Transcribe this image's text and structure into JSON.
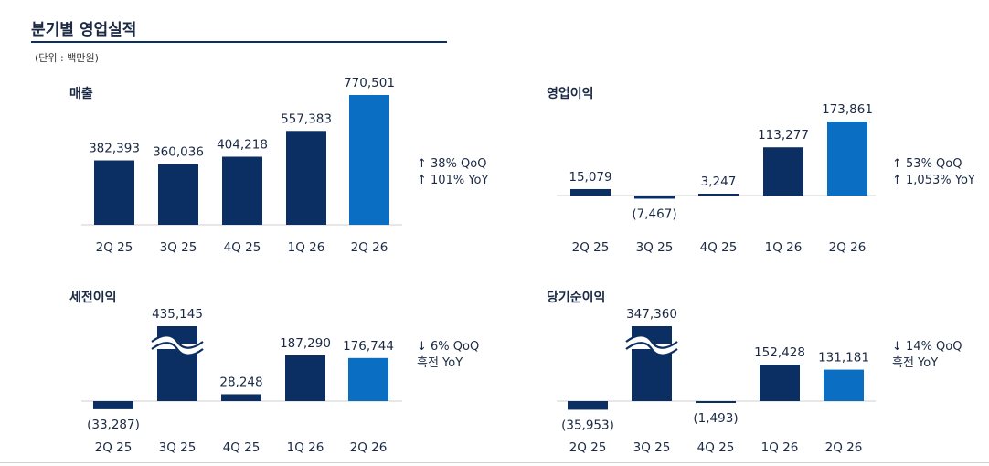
{
  "page": {
    "title": "분기별 영업실적",
    "unit_note": "(단위 : 백만원)"
  },
  "colors": {
    "dark_bar": "#0c2f63",
    "highlight_bar": "#0a6fc2",
    "baseline": "#cfcfcf",
    "text": "#1b2a44"
  },
  "chart_data": [
    {
      "type": "bar",
      "title": "매출",
      "categories": [
        "2Q 25",
        "3Q 25",
        "4Q 25",
        "1Q 26",
        "2Q 26"
      ],
      "values": [
        382393,
        360036,
        404218,
        557383,
        770501
      ],
      "value_labels": [
        "382,393",
        "360,036",
        "404,218",
        "557,383",
        "770,501"
      ],
      "highlight_index": 4,
      "break_index": null,
      "changes": [
        "↑ 38% QoQ",
        "↑ 101% YoY"
      ]
    },
    {
      "type": "bar",
      "title": "영업이익",
      "categories": [
        "2Q 25",
        "3Q 25",
        "4Q 25",
        "1Q 26",
        "2Q 26"
      ],
      "values": [
        15079,
        -7467,
        3247,
        113277,
        173861
      ],
      "value_labels": [
        "15,079",
        "(7,467)",
        "3,247",
        "113,277",
        "173,861"
      ],
      "highlight_index": 4,
      "break_index": null,
      "changes": [
        "↑ 53% QoQ",
        "↑ 1,053% YoY"
      ]
    },
    {
      "type": "bar",
      "title": "세전이익",
      "categories": [
        "2Q 25",
        "3Q 25",
        "4Q 25",
        "1Q 26",
        "2Q 26"
      ],
      "values": [
        -33287,
        435145,
        28248,
        187290,
        176744
      ],
      "value_labels": [
        "(33,287)",
        "435,145",
        "28,248",
        "187,290",
        "176,744"
      ],
      "highlight_index": 4,
      "break_index": 1,
      "changes": [
        "↓ 6% QoQ",
        "흑전 YoY"
      ]
    },
    {
      "type": "bar",
      "title": "당기순이익",
      "categories": [
        "2Q 25",
        "3Q 25",
        "4Q 25",
        "1Q 26",
        "2Q 26"
      ],
      "values": [
        -35953,
        347360,
        -1493,
        152428,
        131181
      ],
      "value_labels": [
        "(35,953)",
        "347,360",
        "(1,493)",
        "152,428",
        "131,181"
      ],
      "highlight_index": 4,
      "break_index": 1,
      "changes": [
        "↓ 14% QoQ",
        "흑전 YoY"
      ]
    }
  ]
}
